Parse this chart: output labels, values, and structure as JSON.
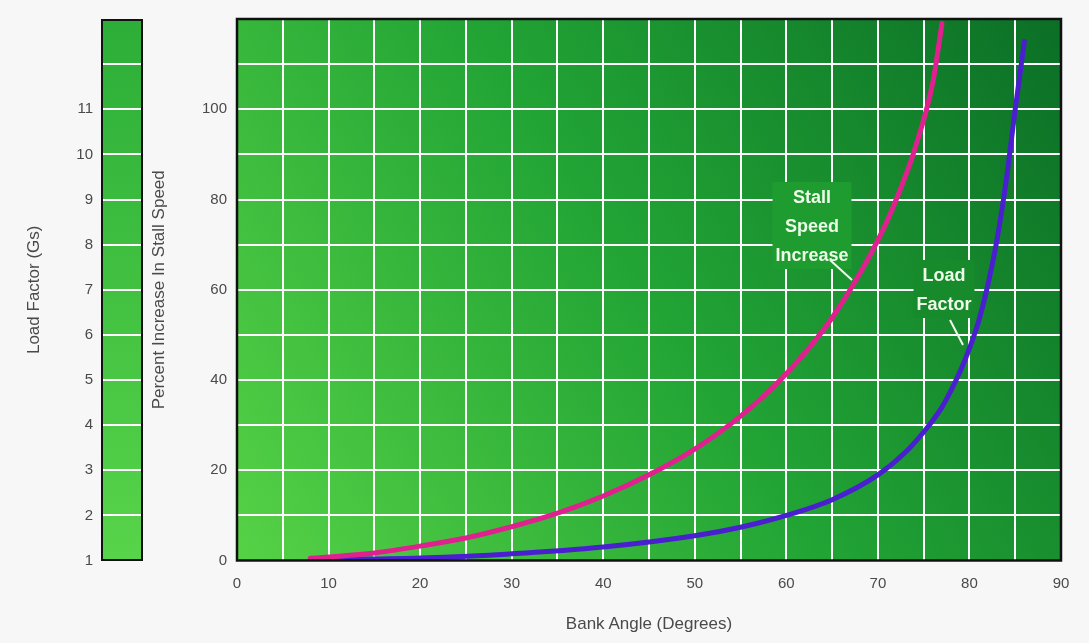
{
  "chart_data": {
    "type": "line",
    "xlabel": "Bank Angle (Degrees)",
    "ylabel": "Percent Increase In Stall Speed",
    "y2label": "Load Factor (Gs)",
    "xlim": [
      0,
      90
    ],
    "xticks": [
      0,
      {
        "value": 5,
        "label": null
      },
      10,
      {
        "value": 15,
        "label": null
      },
      20,
      {
        "value": 25,
        "label": null
      },
      30,
      {
        "value": 35,
        "label": null
      },
      40,
      {
        "value": 45,
        "label": null
      },
      50,
      {
        "value": 55,
        "label": null
      },
      60,
      {
        "value": 65,
        "label": null
      },
      70,
      {
        "value": 75,
        "label": null
      },
      80,
      {
        "value": 85,
        "label": null
      },
      90
    ],
    "ylim": [
      0,
      120
    ],
    "yticks": [
      0,
      {
        "value": 10,
        "label": null
      },
      20,
      {
        "value": 30,
        "label": null
      },
      40,
      {
        "value": 50,
        "label": null
      },
      60,
      {
        "value": 70,
        "label": null
      },
      80,
      {
        "value": 90,
        "label": null
      },
      100,
      {
        "value": 110,
        "label": null
      }
    ],
    "y2lim": [
      1,
      13
    ],
    "y2ticks": [
      1,
      2,
      3,
      4,
      5,
      6,
      7,
      8,
      9,
      10,
      11,
      {
        "value": 12,
        "label": null
      }
    ],
    "grid": true,
    "legend": false,
    "marker": "none",
    "line_style": "solid",
    "series": [
      {
        "name": "Stall Speed Increase",
        "color": "#e0208f",
        "x": [
          8,
          10,
          15,
          20,
          25,
          30,
          35,
          40,
          45,
          50,
          55,
          60,
          65,
          70,
          72,
          74,
          76,
          77
        ],
        "values": [
          0.5,
          0.8,
          1.7,
          3.2,
          5,
          7.5,
          10.5,
          14.3,
          19,
          24.7,
          32,
          41.4,
          53.8,
          71,
          80,
          91,
          106,
          119
        ]
      },
      {
        "name": "Load Factor",
        "color": "#4a1fd0",
        "axis": "y2",
        "x": [
          8,
          10,
          20,
          30,
          40,
          50,
          55,
          60,
          65,
          70,
          73,
          75,
          77,
          79,
          80,
          81,
          82,
          83,
          84,
          85,
          86
        ],
        "values": [
          1.01,
          1.02,
          1.06,
          1.15,
          1.3,
          1.55,
          1.74,
          2,
          2.35,
          2.9,
          3.4,
          3.85,
          4.4,
          5.2,
          5.7,
          6.3,
          7.1,
          8.1,
          9.4,
          11,
          12.5
        ]
      }
    ]
  }
}
